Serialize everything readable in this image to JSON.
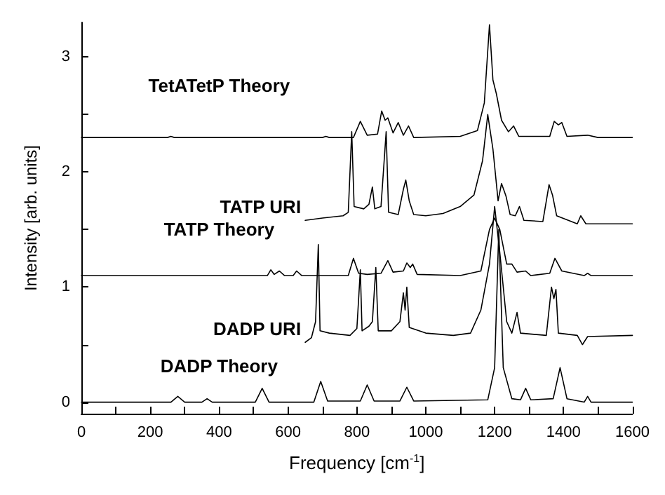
{
  "chart_data": {
    "type": "line",
    "xlabel": "Frequency [cm$^{-1}$]",
    "ylabel": "Intensity [arb. units]",
    "xlim": [
      0,
      1600
    ],
    "ylim": [
      -0.1,
      3.3
    ],
    "xticks": [
      0,
      {
        "value": 100,
        "label": null
      },
      200,
      {
        "value": 300,
        "label": null
      },
      400,
      {
        "value": 500,
        "label": null
      },
      600,
      {
        "value": 700,
        "label": null
      },
      800,
      {
        "value": 900,
        "label": null
      },
      1000,
      {
        "value": 1100,
        "label": null
      },
      1200,
      {
        "value": 1300,
        "label": null
      },
      1400,
      {
        "value": 1500,
        "label": null
      },
      1600
    ],
    "yticks": [
      0,
      {
        "value": 0.5,
        "label": null
      },
      1,
      {
        "value": 1.5,
        "label": null
      },
      2,
      {
        "value": 2.5,
        "label": null
      },
      3
    ],
    "grid": false,
    "legend": false,
    "marker": "none",
    "line_style": "solid",
    "series": [
      {
        "name": "DADP Theory",
        "color": "#000000",
        "x": [
          0,
          260,
          280,
          300,
          350,
          365,
          380,
          505,
          525,
          545,
          675,
          695,
          715,
          810,
          830,
          850,
          925,
          945,
          965,
          1180,
          1200,
          1212,
          1225,
          1250,
          1275,
          1290,
          1305,
          1370,
          1390,
          1410,
          1460,
          1470,
          1480,
          1600
        ],
        "values": [
          0,
          0,
          0.05,
          0,
          0,
          0.03,
          0,
          0,
          0.12,
          0,
          0,
          0.18,
          0.01,
          0.01,
          0.15,
          0.01,
          0.01,
          0.13,
          0.01,
          0.02,
          0.3,
          1.5,
          0.3,
          0.03,
          0.02,
          0.12,
          0.02,
          0.03,
          0.3,
          0.03,
          0,
          0.05,
          0,
          0
        ]
      },
      {
        "name": "DADP URI",
        "color": "#000000",
        "x": [
          650,
          668,
          680,
          688,
          693,
          720,
          780,
          800,
          810,
          815,
          835,
          845,
          855,
          862,
          900,
          925,
          935,
          940,
          945,
          952,
          1000,
          1080,
          1130,
          1160,
          1185,
          1200,
          1215,
          1235,
          1250,
          1265,
          1275,
          1350,
          1365,
          1372,
          1378,
          1385,
          1440,
          1455,
          1470,
          1600
        ],
        "values": [
          0.52,
          0.56,
          0.7,
          1.37,
          0.62,
          0.6,
          0.58,
          0.64,
          1.15,
          0.62,
          0.66,
          0.7,
          1.17,
          0.62,
          0.62,
          0.7,
          0.95,
          0.8,
          1.0,
          0.65,
          0.6,
          0.58,
          0.6,
          0.8,
          1.2,
          1.7,
          1.3,
          0.7,
          0.6,
          0.78,
          0.6,
          0.58,
          1.0,
          0.9,
          0.98,
          0.6,
          0.58,
          0.5,
          0.57,
          0.58
        ]
      },
      {
        "name": "TATP Theory",
        "color": "#000000",
        "x": [
          0,
          540,
          550,
          560,
          575,
          590,
          615,
          625,
          640,
          775,
          790,
          805,
          830,
          870,
          890,
          905,
          935,
          945,
          955,
          962,
          975,
          1100,
          1160,
          1185,
          1200,
          1215,
          1235,
          1250,
          1265,
          1290,
          1305,
          1360,
          1375,
          1395,
          1460,
          1470,
          1480,
          1600
        ],
        "values": [
          1.1,
          1.1,
          1.15,
          1.11,
          1.14,
          1.1,
          1.1,
          1.14,
          1.1,
          1.1,
          1.25,
          1.12,
          1.11,
          1.12,
          1.23,
          1.13,
          1.14,
          1.21,
          1.17,
          1.2,
          1.11,
          1.1,
          1.14,
          1.5,
          1.6,
          1.5,
          1.2,
          1.2,
          1.13,
          1.14,
          1.1,
          1.12,
          1.25,
          1.14,
          1.1,
          1.12,
          1.1,
          1.1
        ]
      },
      {
        "name": "TATP URI",
        "color": "#000000",
        "x": [
          650,
          700,
          760,
          775,
          785,
          792,
          820,
          835,
          845,
          852,
          870,
          885,
          892,
          920,
          935,
          942,
          952,
          965,
          1000,
          1050,
          1100,
          1140,
          1165,
          1180,
          1195,
          1210,
          1220,
          1233,
          1245,
          1260,
          1272,
          1285,
          1340,
          1358,
          1368,
          1380,
          1440,
          1450,
          1465,
          1600
        ],
        "values": [
          1.58,
          1.6,
          1.62,
          1.65,
          2.35,
          1.7,
          1.68,
          1.72,
          1.87,
          1.68,
          1.7,
          2.35,
          1.65,
          1.63,
          1.85,
          1.93,
          1.75,
          1.63,
          1.62,
          1.64,
          1.7,
          1.8,
          2.1,
          2.5,
          2.2,
          1.75,
          1.9,
          1.79,
          1.63,
          1.62,
          1.7,
          1.58,
          1.57,
          1.89,
          1.8,
          1.62,
          1.55,
          1.62,
          1.55,
          1.55
        ]
      },
      {
        "name": "TetATetP Theory",
        "color": "#000000",
        "x": [
          0,
          250,
          260,
          270,
          700,
          710,
          720,
          790,
          810,
          830,
          860,
          872,
          882,
          890,
          905,
          920,
          935,
          950,
          965,
          1100,
          1150,
          1170,
          1185,
          1195,
          1205,
          1220,
          1240,
          1255,
          1270,
          1360,
          1373,
          1385,
          1395,
          1410,
          1470,
          1500,
          1600
        ],
        "values": [
          2.3,
          2.3,
          2.31,
          2.3,
          2.3,
          2.31,
          2.3,
          2.3,
          2.44,
          2.32,
          2.33,
          2.53,
          2.45,
          2.47,
          2.34,
          2.43,
          2.32,
          2.4,
          2.3,
          2.31,
          2.36,
          2.6,
          3.28,
          2.8,
          2.68,
          2.45,
          2.35,
          2.4,
          2.31,
          2.31,
          2.44,
          2.41,
          2.43,
          2.31,
          2.32,
          2.3,
          2.3
        ]
      }
    ]
  }
}
